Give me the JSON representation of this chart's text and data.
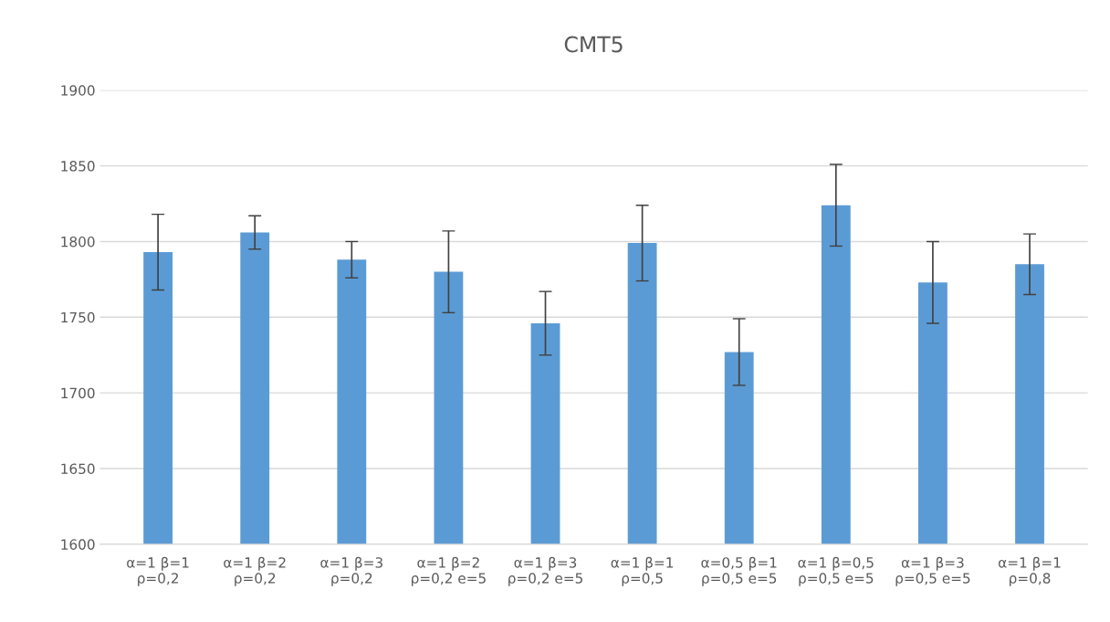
{
  "chart_data": {
    "type": "bar",
    "title": "CMT5",
    "categories": [
      "α=1 β=1\nρ=0,2",
      "α=1 β=2\nρ=0,2",
      "α=1 β=3\nρ=0,2",
      "α=1 β=2\nρ=0,2 e=5",
      "α=1 β=3\nρ=0,2 e=5",
      "α=1 β=1\nρ=0,5",
      "α=0,5 β=1\nρ=0,5 e=5",
      "α=1 β=0,5\nρ=0,5 e=5",
      "α=1 β=3\nρ=0,5 e=5",
      "α=1 β=1\nρ=0,8"
    ],
    "values": [
      1793,
      1806,
      1788,
      1780,
      1746,
      1799,
      1727,
      1824,
      1773,
      1785
    ],
    "errors": [
      25,
      11,
      12,
      27,
      21,
      25,
      22,
      27,
      27,
      20
    ],
    "color": "#5b9bd5",
    "ylim": [
      1600,
      1900
    ],
    "yticks": [
      1600,
      1650,
      1700,
      1750,
      1800,
      1850,
      1900
    ],
    "grid": "y"
  }
}
